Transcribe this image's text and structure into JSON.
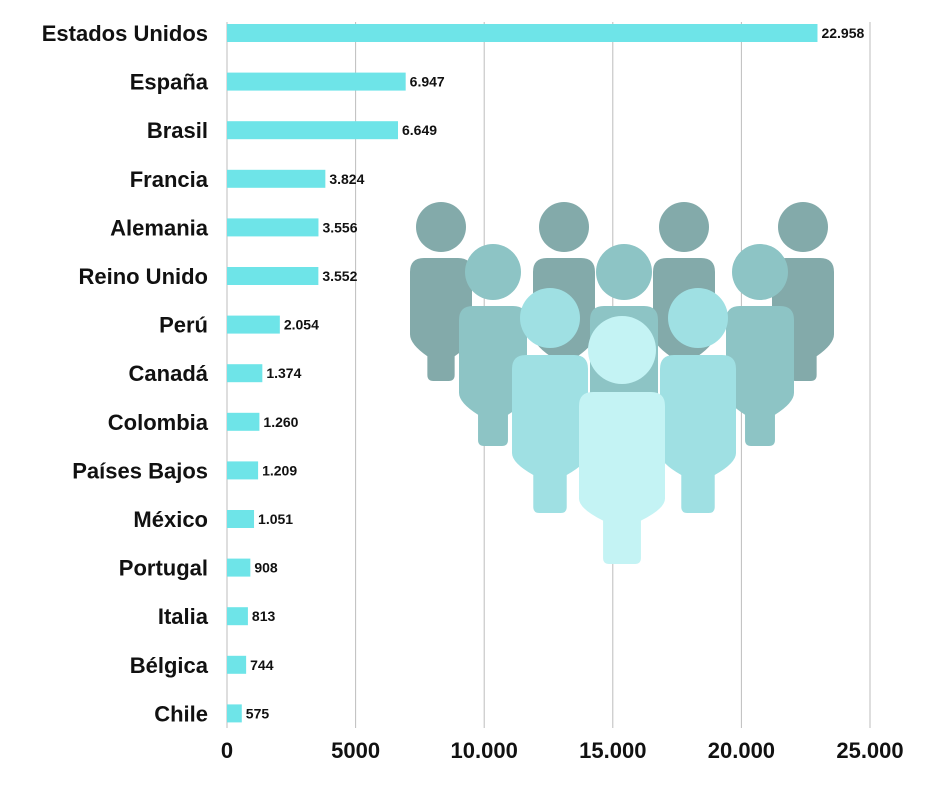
{
  "chart_data": {
    "type": "bar",
    "orientation": "horizontal",
    "categories": [
      "Estados Unidos",
      "España",
      "Brasil",
      "Francia",
      "Alemania",
      "Reino Unido",
      "Perú",
      "Canadá",
      "Colombia",
      "Países Bajos",
      "México",
      "Portugal",
      "Italia",
      "Bélgica",
      "Chile"
    ],
    "values": [
      22958,
      6947,
      6649,
      3824,
      3556,
      3552,
      2054,
      1374,
      1260,
      1209,
      1051,
      908,
      813,
      744,
      575
    ],
    "value_labels": [
      "22.958",
      "6.947",
      "6.649",
      "3.824",
      "3.556",
      "3.552",
      "2.054",
      "1.374",
      "1.260",
      "1.209",
      "1.051",
      "908",
      "813",
      "744",
      "575"
    ],
    "x_ticks": [
      0,
      5000,
      10000,
      15000,
      20000,
      25000
    ],
    "x_tick_labels": [
      "0",
      "5000",
      "10.000",
      "15.000",
      "20.000",
      "25.000"
    ],
    "xlim": [
      0,
      25000
    ],
    "grid": true,
    "title": "",
    "xlabel": "",
    "ylabel": "",
    "bar_color": "#6ee4e8",
    "decoration": "people-group-icon",
    "people_colors": [
      "#83aaaa",
      "#8dc4c5",
      "#9fe0e3",
      "#c4f3f4"
    ]
  }
}
